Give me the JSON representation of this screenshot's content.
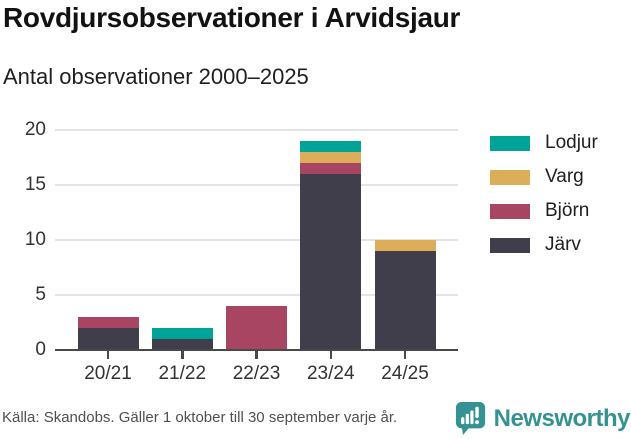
{
  "header": {
    "title": "Rovdjursobservationer i Arvidsjaur",
    "subtitle": "Antal observationer 2000–2025"
  },
  "chart_data": {
    "type": "bar",
    "stacked": true,
    "title": "Rovdjursobservationer i Arvidsjaur",
    "subtitle": "Antal observationer 2000–2025",
    "categories": [
      "20/21",
      "21/22",
      "22/23",
      "23/24",
      "24/25"
    ],
    "series": [
      {
        "name": "Järv",
        "color": "#413e4c",
        "values": [
          2,
          1,
          0,
          16,
          9
        ]
      },
      {
        "name": "Björn",
        "color": "#a74562",
        "values": [
          1,
          0,
          4,
          1,
          0
        ]
      },
      {
        "name": "Varg",
        "color": "#dcae5a",
        "values": [
          0,
          0,
          0,
          1,
          1
        ]
      },
      {
        "name": "Lodjur",
        "color": "#00a398",
        "values": [
          0,
          1,
          0,
          1,
          0
        ]
      }
    ],
    "totals": [
      3,
      2,
      4,
      19,
      10
    ],
    "xlabel": "",
    "ylabel": "",
    "ylim": [
      0,
      20
    ],
    "yticks": [
      0,
      5,
      10,
      15,
      20
    ],
    "grid": "horizontal",
    "legend_position": "right",
    "legend_order": [
      "Lodjur",
      "Varg",
      "Björn",
      "Järv"
    ]
  },
  "colors": {
    "grid": "#e4e4e4",
    "axis": "#494949",
    "tick_label": "#333333",
    "legend_text": "#1f1f1f",
    "brand": "#349293"
  },
  "footer": {
    "source": "Källa: Skandobs. Gäller 1 oktober till 30 september varje år.",
    "brand": "Newsworthy"
  }
}
